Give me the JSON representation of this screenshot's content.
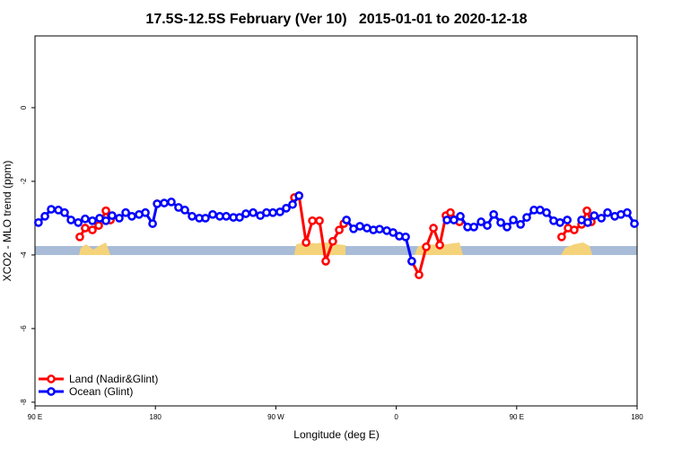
{
  "chart_data": {
    "type": "line",
    "title": "17.5S-12.5S February (Ver 10)   2015-01-01 to 2020-12-18",
    "x_label": "Longitude (deg E)",
    "y_label": "XCO2 - MLO trend (ppm)",
    "xlim": [
      90,
      540
    ],
    "xticks": [
      {
        "value": 90,
        "label": "90 E"
      },
      180,
      {
        "value": 270,
        "label": "90 W"
      },
      {
        "value": 360,
        "label": "0"
      },
      {
        "value": 450,
        "label": "90 E"
      },
      {
        "value": 540,
        "label": "180"
      }
    ],
    "ylim": [
      -8.1,
      1.95
    ],
    "yticks": [
      0,
      -2,
      -4,
      -6,
      -8
    ],
    "legend": "bottom-left",
    "series": [
      {
        "name": "Land (Nadir&Glint)",
        "color": "#ff0000",
        "x": [
          123.5,
          127.5,
          132.9,
          137.6,
          143,
          146.4,
          175,
          181.3,
          230,
          283.9,
          287.3,
          292.6,
          297.3,
          302.6,
          307.3,
          312.6,
          317.4,
          320.8,
          345,
          371.6,
          377,
          382.4,
          387.8,
          392.5,
          397.1,
          400.5,
          407.3,
          450,
          483.6,
          488.4,
          493,
          498.5,
          502.5,
          505.8
        ],
        "values": [
          -3.51,
          -3.27,
          -3.32,
          -3.2,
          -2.8,
          -3.05,
          null,
          -2.61,
          null,
          -2.44,
          -2.39,
          -3.66,
          -3.07,
          -3.07,
          -4.17,
          -3.63,
          -3.32,
          -3.15,
          null,
          -4.17,
          -4.54,
          -3.78,
          -3.27,
          -3.73,
          -2.93,
          -2.85,
          -3.1,
          null,
          -3.51,
          -3.27,
          -3.32,
          -3.17,
          -2.8,
          -3.1
        ]
      },
      {
        "name": "Ocean (Glint)",
        "color": "#0000ff",
        "x": [
          92.6,
          97.4,
          102.1,
          107.5,
          112.1,
          116.9,
          122.3,
          127.5,
          132.9,
          138.3,
          143,
          147.6,
          153,
          157.8,
          162.4,
          167.8,
          172.5,
          177.9,
          181.3,
          186.6,
          191.9,
          197.3,
          202,
          207.4,
          212.8,
          217.4,
          222.8,
          228.1,
          232.9,
          238.3,
          242.9,
          247.6,
          253,
          258.4,
          263,
          267.8,
          273.1,
          277.8,
          282.5,
          287.3,
          305,
          322.8,
          328.1,
          332.8,
          338.1,
          342.9,
          347.5,
          352.9,
          357.6,
          362.3,
          367,
          371.6,
          385,
          397.9,
          403.1,
          407.9,
          413.3,
          418,
          423.4,
          428,
          432.8,
          438.1,
          442.8,
          447.5,
          452.9,
          457.5,
          462.9,
          467.5,
          472.3,
          477.6,
          482.4,
          487.8,
          493,
          498.5,
          503.1,
          507.9,
          513.3,
          517.9,
          523.3,
          527.9,
          532.6,
          538
        ],
        "values": [
          -3.12,
          -2.95,
          -2.76,
          -2.78,
          -2.85,
          -3.05,
          -3.12,
          -3.02,
          -3.07,
          -3.0,
          -3.07,
          -2.93,
          -3.0,
          -2.85,
          -2.95,
          -2.9,
          -2.85,
          -3.15,
          -2.61,
          -2.59,
          -2.56,
          -2.71,
          -2.78,
          -2.95,
          -3.0,
          -3.0,
          -2.9,
          -2.95,
          -2.95,
          -2.98,
          -2.98,
          -2.88,
          -2.85,
          -2.93,
          -2.85,
          -2.85,
          -2.83,
          -2.73,
          -2.63,
          -2.39,
          null,
          -3.05,
          -3.29,
          -3.22,
          -3.27,
          -3.32,
          -3.3,
          -3.34,
          -3.39,
          -3.49,
          -3.51,
          -4.17,
          null,
          -3.05,
          -3.05,
          -2.95,
          -3.24,
          -3.24,
          -3.1,
          -3.2,
          -2.9,
          -3.12,
          -3.24,
          -3.05,
          -3.17,
          -2.98,
          -2.78,
          -2.78,
          -2.85,
          -3.07,
          -3.12,
          -3.05,
          null,
          -3.05,
          -3.12,
          -2.93,
          -3.0,
          -2.85,
          -2.95,
          -2.9,
          -2.85,
          -3.15
        ]
      }
    ]
  }
}
